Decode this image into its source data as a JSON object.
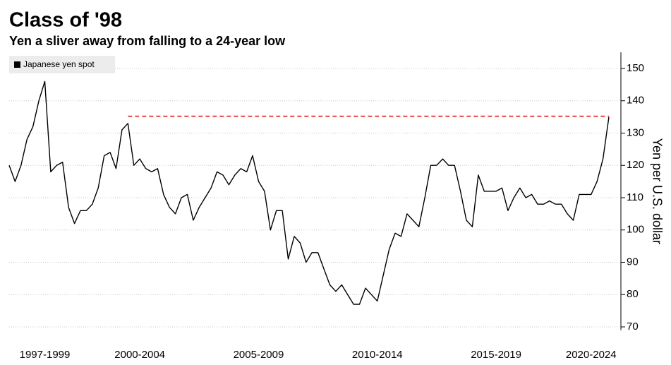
{
  "chart_data": {
    "type": "line",
    "title": "Class of '98",
    "subtitle": "Yen a sliver away from falling to a 24-year low",
    "y_axis_label": "Yen per U.S. dollar",
    "categories": [
      null,
      null,
      null,
      null,
      null,
      null,
      "1997-1999",
      null,
      null,
      null,
      null,
      null,
      null,
      null,
      null,
      null,
      null,
      null,
      null,
      null,
      null,
      null,
      "2000-2004",
      null,
      null,
      null,
      null,
      null,
      null,
      null,
      null,
      null,
      null,
      null,
      null,
      null,
      null,
      null,
      null,
      null,
      null,
      null,
      "2005-2009",
      null,
      null,
      null,
      null,
      null,
      null,
      null,
      null,
      null,
      null,
      null,
      null,
      null,
      null,
      null,
      null,
      null,
      null,
      null,
      "2010-2014",
      null,
      null,
      null,
      null,
      null,
      null,
      null,
      null,
      null,
      null,
      null,
      null,
      null,
      null,
      null,
      null,
      null,
      null,
      null,
      "2015-2019",
      null,
      null,
      null,
      null,
      null,
      null,
      null,
      null,
      null,
      null,
      null,
      null,
      null,
      null,
      null,
      "2020-2024",
      null,
      null,
      null
    ],
    "series": [
      {
        "name": "Japanese yen spot",
        "color": "#000000",
        "values": [
          120,
          115,
          120,
          128,
          132,
          140,
          146,
          118,
          120,
          121,
          107,
          102,
          106,
          106,
          108,
          113,
          123,
          124,
          119,
          131,
          133,
          120,
          122,
          119,
          118,
          119,
          111,
          107,
          105,
          110,
          111,
          103,
          107,
          110,
          113,
          118,
          117,
          114,
          117,
          119,
          118,
          123,
          115,
          112,
          100,
          106,
          106,
          91,
          98,
          96,
          90,
          93,
          93,
          88,
          83,
          81,
          83,
          80,
          77,
          77,
          82,
          80,
          78,
          86,
          94,
          99,
          98,
          105,
          103,
          101,
          110,
          120,
          120,
          122,
          120,
          120,
          112,
          103,
          101,
          117,
          112,
          112,
          112,
          113,
          106,
          110,
          113,
          110,
          111,
          108,
          108,
          109,
          108,
          108,
          105,
          103,
          111,
          111,
          111,
          115,
          122,
          135
        ]
      }
    ],
    "reference_line": {
      "value": 135.2,
      "color": "#e8474f"
    },
    "ylim": [
      69,
      155
    ],
    "yticks": [
      70,
      80,
      90,
      100,
      110,
      120,
      130,
      140,
      150
    ],
    "grid": true,
    "legend": "top-left"
  }
}
